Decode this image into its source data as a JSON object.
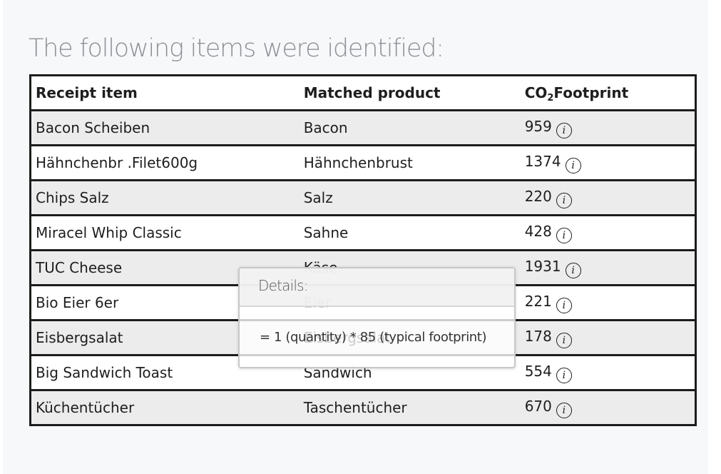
{
  "heading": "The following items were identified:",
  "table": {
    "headers": {
      "receipt": "Receipt item",
      "matched": "Matched product",
      "co2_prefix": "CO",
      "co2_sub": "2",
      "co2_suffix": "Footprint"
    },
    "rows": [
      {
        "receipt": "Bacon Scheiben",
        "matched": "Bacon",
        "footprint": "959"
      },
      {
        "receipt": "Hähnchenbr .Filet600g",
        "matched": "Hähnchenbrust",
        "footprint": "1374"
      },
      {
        "receipt": "Chips Salz",
        "matched": "Salz",
        "footprint": "220"
      },
      {
        "receipt": "Miracel Whip Classic",
        "matched": "Sahne",
        "footprint": "428"
      },
      {
        "receipt": "TUC Cheese",
        "matched": "Käse",
        "footprint": "1931"
      },
      {
        "receipt": "Bio Eier 6er",
        "matched": "Eier",
        "footprint": "221"
      },
      {
        "receipt": "Eisbergsalat",
        "matched": "Eisbergsalat",
        "footprint": "178"
      },
      {
        "receipt": "Big Sandwich Toast",
        "matched": "Sandwich",
        "footprint": "554"
      },
      {
        "receipt": "Küchentücher",
        "matched": "Taschentücher",
        "footprint": "670"
      }
    ],
    "info_icon_glyph": "i",
    "info_icon": "info-icon"
  },
  "popover": {
    "title": "Details:",
    "body": "= 1 (quantity) * 85 (typical footprint)"
  }
}
